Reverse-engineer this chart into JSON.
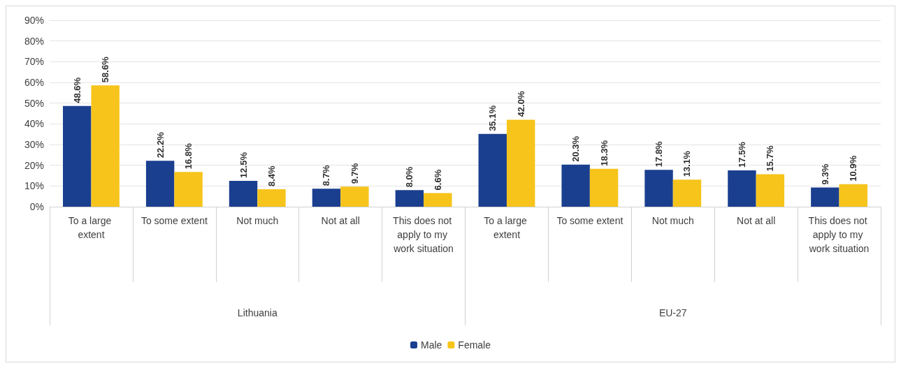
{
  "chart_data": {
    "type": "bar",
    "categories": [
      "To a large extent",
      "To some extent",
      "Not much",
      "Not at all",
      "This does not apply to my work situation",
      "To a large extent",
      "To some extent",
      "Not much",
      "Not at all",
      "This does not apply to my work situation"
    ],
    "annotations": [
      "Lithuania",
      "EU-27"
    ],
    "series": [
      {
        "name": "Male",
        "color": "#1b3f8f",
        "values": [
          48.6,
          22.2,
          12.5,
          8.7,
          8.0,
          35.1,
          20.3,
          17.8,
          17.5,
          9.3
        ],
        "value_labels": [
          "48.6%",
          "22.2%",
          "12.5%",
          "8.7%",
          "8.0%",
          "35.1%",
          "20.3%",
          "17.8%",
          "17.5%",
          "9.3%"
        ]
      },
      {
        "name": "Female",
        "color": "#f6c41b",
        "values": [
          58.6,
          16.8,
          8.4,
          9.7,
          6.6,
          42.0,
          18.3,
          13.1,
          15.7,
          10.9
        ],
        "value_labels": [
          "58.6%",
          "16.8%",
          "8.4%",
          "9.7%",
          "6.6%",
          "42.0%",
          "18.3%",
          "13.1%",
          "15.7%",
          "10.9%"
        ]
      }
    ],
    "ylim": [
      0,
      90
    ],
    "yticks": [
      {
        "value": 0,
        "label": "0%"
      },
      {
        "value": 10,
        "label": "10%"
      },
      {
        "value": 20,
        "label": "20%"
      },
      {
        "value": 30,
        "label": "30%"
      },
      {
        "value": 40,
        "label": "40%"
      },
      {
        "value": 50,
        "label": "50%"
      },
      {
        "value": 60,
        "label": "60%"
      },
      {
        "value": 70,
        "label": "70%"
      },
      {
        "value": 80,
        "label": "80%"
      },
      {
        "value": 90,
        "label": "90%"
      }
    ],
    "grid": "y",
    "legend": "bottom"
  }
}
